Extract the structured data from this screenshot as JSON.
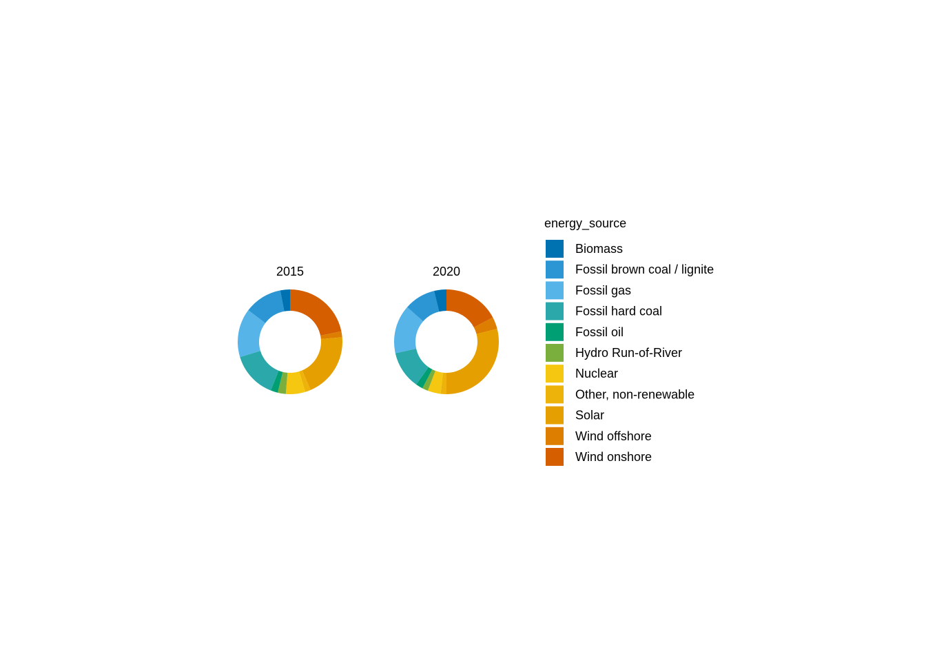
{
  "chart_data": {
    "type": "pie",
    "subtype": "donut",
    "facets": [
      {
        "label": "2015",
        "values": {
          "Biomass": 3.0,
          "Fossil brown coal / lignite": 11.7,
          "Fossil gas": 15.0,
          "Fossil hard coal": 14.3,
          "Fossil oil": 2.2,
          "Hydro Run-of-River": 2.5,
          "Nuclear": 6.0,
          "Other, non-renewable": 1.7,
          "Solar": 20.0,
          "Wind offshore": 1.8,
          "Wind onshore": 21.8
        }
      },
      {
        "label": "2020",
        "values": {
          "Biomass": 3.8,
          "Fossil brown coal / lignite": 9.7,
          "Fossil gas": 15.0,
          "Fossil hard coal": 11.7,
          "Fossil oil": 2.2,
          "Hydro Run-of-River": 1.8,
          "Nuclear": 4.0,
          "Other, non-renewable": 1.8,
          "Solar": 29.0,
          "Wind offshore": 3.7,
          "Wind onshore": 17.3
        }
      }
    ],
    "legend": {
      "title": "energy_source",
      "position": "right",
      "items": [
        {
          "label": "Biomass",
          "color": "#0072b2"
        },
        {
          "label": "Fossil brown coal / lignite",
          "color": "#2b96d3"
        },
        {
          "label": "Fossil gas",
          "color": "#56b4e9"
        },
        {
          "label": "Fossil hard coal",
          "color": "#2aa8aa"
        },
        {
          "label": "Fossil oil",
          "color": "#009e73"
        },
        {
          "label": "Hydro Run-of-River",
          "color": "#7aaf3e"
        },
        {
          "label": "Nuclear",
          "color": "#f5c710"
        },
        {
          "label": "Other, non-renewable",
          "color": "#eeb30a"
        },
        {
          "label": "Solar",
          "color": "#e69f00"
        },
        {
          "label": "Wind offshore",
          "color": "#dd7e00"
        },
        {
          "label": "Wind onshore",
          "color": "#d55e00"
        }
      ]
    },
    "grid": false
  }
}
